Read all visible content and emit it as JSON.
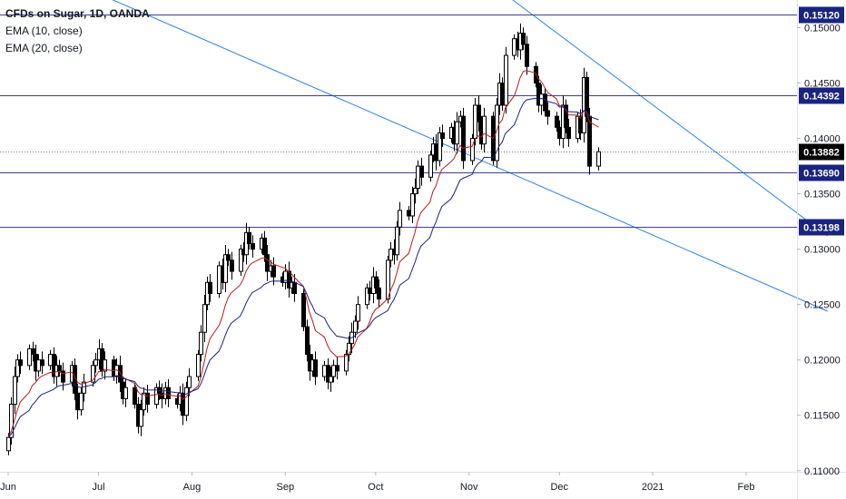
{
  "legend": {
    "title": "CFDs on Sugar, 1D, OANDA",
    "ema10": "EMA (10, close)",
    "ema20": "EMA (20, close)"
  },
  "colors": {
    "up_body": "#ffffff",
    "down_body": "#000000",
    "wick": "#000000",
    "ema10": "#b71c1c",
    "ema20": "#1a237e",
    "level_line": "#3f3f91",
    "trend_line": "#2f80ed",
    "badge": "#1a237e",
    "last_price_badge": "#000000"
  },
  "chart_data": {
    "type": "candlestick",
    "ylim": [
      0.1099,
      0.1525
    ],
    "y_ticks": [
      "0.15000",
      "0.14500",
      "0.14000",
      "0.13500",
      "0.13000",
      "0.12500",
      "0.12000",
      "0.11500",
      "0.11000"
    ],
    "y_tick_values": [
      0.15,
      0.145,
      0.14,
      0.135,
      0.13,
      0.125,
      0.12,
      0.115,
      0.11
    ],
    "x_ticks": [
      "Jun",
      "Jul",
      "Aug",
      "Sep",
      "Oct",
      "Nov",
      "Dec",
      "2021",
      "Feb"
    ],
    "x_tick_dates": [
      "2020-06-01",
      "2020-07-01",
      "2020-08-01",
      "2020-09-01",
      "2020-10-01",
      "2020-11-01",
      "2020-12-01",
      "2021-01-01",
      "2021-02-01"
    ],
    "horizontal_levels": [
      {
        "value": 0.1512,
        "label": "0.15120"
      },
      {
        "value": 0.14392,
        "label": "0.14392"
      },
      {
        "value": 0.1369,
        "label": "0.13690"
      },
      {
        "value": 0.13198,
        "label": "0.13198"
      }
    ],
    "last_price": {
      "value": 0.13882,
      "label": "0.13882"
    },
    "trend_lines": [
      {
        "from": {
          "date": "2020-05-28",
          "value": 0.1571
        },
        "to": {
          "date": "2021-02-28",
          "value": 0.1244
        }
      },
      {
        "from": {
          "date": "2020-10-24",
          "value": 0.1571
        },
        "to": {
          "date": "2021-02-28",
          "value": 0.1312
        }
      }
    ],
    "dates": [
      "2020-06-01",
      "2020-06-02",
      "2020-06-03",
      "2020-06-04",
      "2020-06-05",
      "2020-06-08",
      "2020-06-09",
      "2020-06-10",
      "2020-06-11",
      "2020-06-12",
      "2020-06-15",
      "2020-06-16",
      "2020-06-17",
      "2020-06-18",
      "2020-06-19",
      "2020-06-22",
      "2020-06-23",
      "2020-06-24",
      "2020-06-25",
      "2020-06-26",
      "2020-06-29",
      "2020-06-30",
      "2020-07-01",
      "2020-07-02",
      "2020-07-03",
      "2020-07-06",
      "2020-07-07",
      "2020-07-08",
      "2020-07-09",
      "2020-07-10",
      "2020-07-13",
      "2020-07-14",
      "2020-07-15",
      "2020-07-16",
      "2020-07-17",
      "2020-07-20",
      "2020-07-21",
      "2020-07-22",
      "2020-07-23",
      "2020-07-24",
      "2020-07-27",
      "2020-07-28",
      "2020-07-29",
      "2020-07-30",
      "2020-07-31",
      "2020-08-03",
      "2020-08-04",
      "2020-08-05",
      "2020-08-06",
      "2020-08-07",
      "2020-08-10",
      "2020-08-11",
      "2020-08-12",
      "2020-08-13",
      "2020-08-14",
      "2020-08-17",
      "2020-08-18",
      "2020-08-19",
      "2020-08-20",
      "2020-08-21",
      "2020-08-24",
      "2020-08-25",
      "2020-08-26",
      "2020-08-27",
      "2020-08-28",
      "2020-08-31",
      "2020-09-01",
      "2020-09-02",
      "2020-09-03",
      "2020-09-04",
      "2020-09-07",
      "2020-09-08",
      "2020-09-09",
      "2020-09-10",
      "2020-09-11",
      "2020-09-14",
      "2020-09-15",
      "2020-09-16",
      "2020-09-17",
      "2020-09-18",
      "2020-09-21",
      "2020-09-22",
      "2020-09-23",
      "2020-09-24",
      "2020-09-25",
      "2020-09-28",
      "2020-09-29",
      "2020-09-30",
      "2020-10-01",
      "2020-10-02",
      "2020-10-05",
      "2020-10-06",
      "2020-10-07",
      "2020-10-08",
      "2020-10-09",
      "2020-10-12",
      "2020-10-13",
      "2020-10-14",
      "2020-10-15",
      "2020-10-16",
      "2020-10-19",
      "2020-10-20",
      "2020-10-21",
      "2020-10-22",
      "2020-10-23",
      "2020-10-26",
      "2020-10-27",
      "2020-10-28",
      "2020-10-29",
      "2020-10-30",
      "2020-11-02",
      "2020-11-03",
      "2020-11-04",
      "2020-11-05",
      "2020-11-06",
      "2020-11-09",
      "2020-11-10",
      "2020-11-11",
      "2020-11-12",
      "2020-11-13",
      "2020-11-16",
      "2020-11-17",
      "2020-11-18",
      "2020-11-19",
      "2020-11-20",
      "2020-11-23",
      "2020-11-24",
      "2020-11-25",
      "2020-11-26",
      "2020-11-27",
      "2020-11-30",
      "2020-12-01",
      "2020-12-02",
      "2020-12-03",
      "2020-12-04",
      "2020-12-07",
      "2020-12-08",
      "2020-12-09",
      "2020-12-10",
      "2020-12-11",
      "2020-12-14"
    ],
    "close": [
      0.113,
      0.116,
      0.1185,
      0.12,
      0.1195,
      0.121,
      0.1205,
      0.119,
      0.12,
      0.1195,
      0.1205,
      0.1185,
      0.1195,
      0.119,
      0.118,
      0.1195,
      0.117,
      0.1155,
      0.117,
      0.118,
      0.1195,
      0.12,
      0.121,
      0.119,
      0.12,
      0.1185,
      0.1195,
      0.118,
      0.1165,
      0.1175,
      0.116,
      0.114,
      0.1155,
      0.117,
      0.116,
      0.1175,
      0.117,
      0.1165,
      0.1175,
      0.1165,
      0.116,
      0.117,
      0.115,
      0.1175,
      0.1185,
      0.1205,
      0.1225,
      0.125,
      0.127,
      0.126,
      0.1285,
      0.127,
      0.1295,
      0.129,
      0.128,
      0.13,
      0.1295,
      0.1315,
      0.1305,
      0.13,
      0.131,
      0.1295,
      0.128,
      0.1285,
      0.1275,
      0.127,
      0.128,
      0.1265,
      0.127,
      0.126,
      0.123,
      0.1205,
      0.119,
      0.12,
      0.1185,
      0.1195,
      0.118,
      0.1185,
      0.1195,
      0.119,
      0.1205,
      0.1215,
      0.1225,
      0.1235,
      0.125,
      0.1265,
      0.126,
      0.1275,
      0.1265,
      0.1255,
      0.129,
      0.13,
      0.1295,
      0.132,
      0.1335,
      0.133,
      0.135,
      0.1355,
      0.1375,
      0.1365,
      0.1385,
      0.1395,
      0.138,
      0.1405,
      0.14,
      0.141,
      0.1395,
      0.1415,
      0.142,
      0.138,
      0.14,
      0.143,
      0.1415,
      0.1395,
      0.142,
      0.138,
      0.143,
      0.145,
      0.143,
      0.1475,
      0.149,
      0.148,
      0.1495,
      0.1485,
      0.1465,
      0.145,
      0.143,
      0.144,
      0.1425,
      0.142,
      0.141,
      0.14,
      0.143,
      0.141,
      0.14,
      0.142,
      0.1405,
      0.1455,
      0.142,
      0.1375,
      0.1388
    ]
  }
}
